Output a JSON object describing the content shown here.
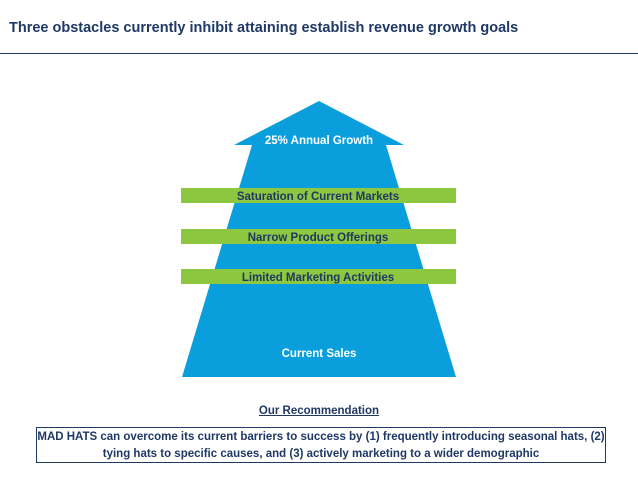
{
  "slide": {
    "title": "Three obstacles currently inhibit attaining establish revenue growth goals"
  },
  "diagram": {
    "arrow_label": "25% Annual Growth",
    "base_label": "Current Sales",
    "obstacles": [
      "Saturation of Current Markets",
      "Narrow Product Offerings",
      "Limited Marketing Activities"
    ],
    "colors": {
      "arrow": "#0a9fdc",
      "band": "#8dc63f",
      "band_text": "#1f3864",
      "arrow_text": "#ffffff"
    }
  },
  "recommendation": {
    "heading": "Our Recommendation",
    "text": "MAD HATS can overcome its current barriers to success by (1) frequently introducing seasonal hats, (2) tying hats to specific causes, and (3) actively marketing to a wider demographic"
  }
}
